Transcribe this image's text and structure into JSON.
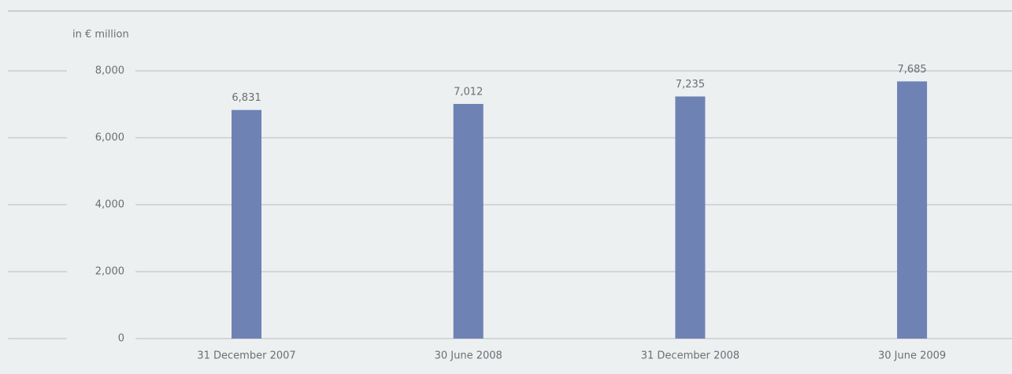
{
  "chart_data": {
    "type": "bar",
    "y_label": "in € million",
    "categories": [
      "31 December 2007",
      "30 June 2008",
      "31 December 2008",
      "30 June 2009"
    ],
    "values": [
      6831,
      7012,
      7235,
      7685
    ],
    "value_labels": [
      "6,831",
      "7,012",
      "7,235",
      "7,685"
    ],
    "color": "#6f82b4",
    "ylim": [
      0,
      8000
    ],
    "yticks": [
      0,
      {
        "value": 2000,
        "label": "2,000"
      },
      {
        "value": 4000,
        "label": "4,000"
      },
      {
        "value": 6000,
        "label": "6,000"
      },
      {
        "value": 8000,
        "label": "8,000"
      }
    ],
    "grid": true
  }
}
